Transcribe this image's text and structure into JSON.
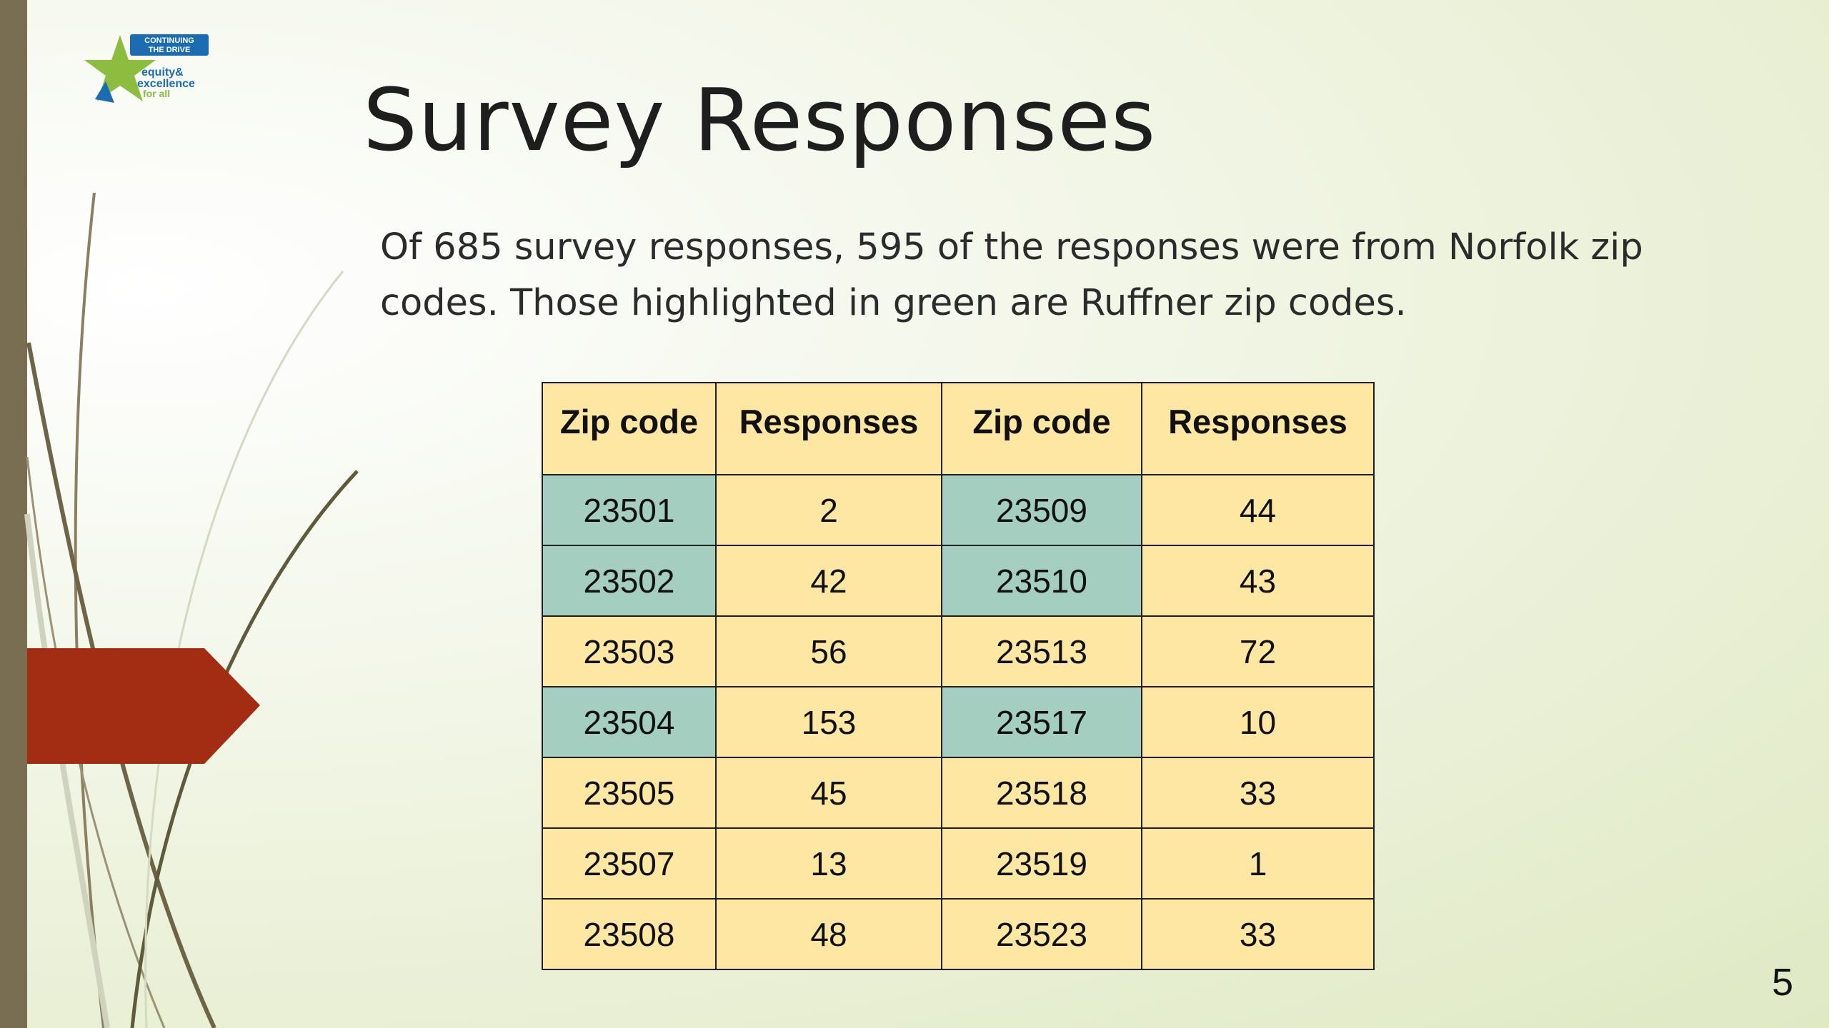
{
  "logo": {
    "line1": "CONTINUING",
    "line2": "THE DRIVE",
    "line3": "equity&",
    "line4": "excellence",
    "line5": "for all"
  },
  "slide": {
    "title": "Survey Responses",
    "subtitle": "Of 685 survey responses, 595 of the responses were from Norfolk zip codes. Those highlighted in green are Ruffner zip codes.",
    "page_number": "5"
  },
  "colors": {
    "header_fill": "#fde7a3",
    "cell_fill": "#fde7a3",
    "ruffner_highlight": "#a4cfc0",
    "arrow": "#a32d12",
    "left_bar": "#7a6e52"
  },
  "table": {
    "headers": [
      "Zip code",
      "Responses",
      "Zip code",
      "Responses"
    ],
    "rows": [
      {
        "zip1": "23501",
        "resp1": "2",
        "zip2": "23509",
        "resp2": "44"
      },
      {
        "zip1": "23502",
        "resp1": "42",
        "zip2": "23510",
        "resp2": "43"
      },
      {
        "zip1": "23503",
        "resp1": "56",
        "zip2": "23513",
        "resp2": "72"
      },
      {
        "zip1": "23504",
        "resp1": "153",
        "zip2": "23517",
        "resp2": "10"
      },
      {
        "zip1": "23505",
        "resp1": "45",
        "zip2": "23518",
        "resp2": "33"
      },
      {
        "zip1": "23507",
        "resp1": "13",
        "zip2": "23519",
        "resp2": "1"
      },
      {
        "zip1": "23508",
        "resp1": "48",
        "zip2": "23523",
        "resp2": "33"
      }
    ]
  }
}
